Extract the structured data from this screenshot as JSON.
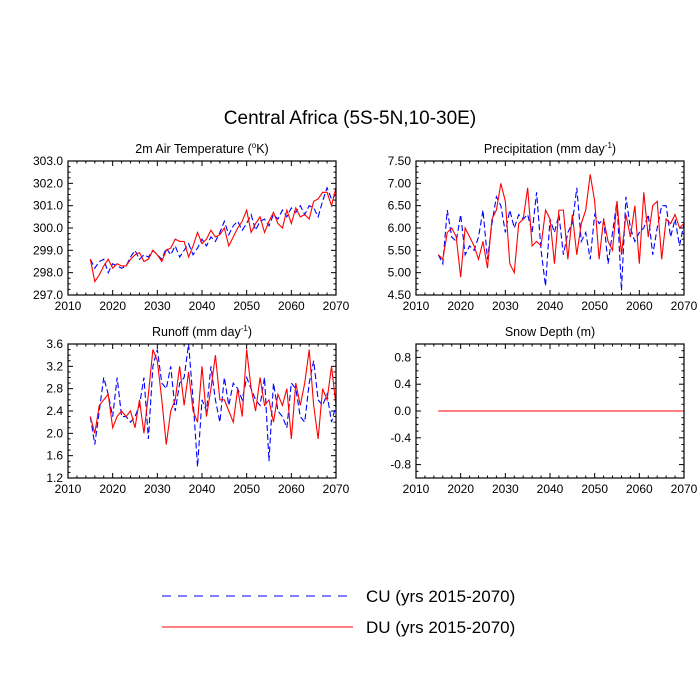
{
  "figure": {
    "title": "Central Africa (5S-5N,10-30E)",
    "x_ticks": [
      "2010",
      "2020",
      "2030",
      "2040",
      "2050",
      "2060",
      "2070"
    ]
  },
  "legend": {
    "entries": [
      {
        "label": "CU (yrs 2015-2070)",
        "color": "#0000ff",
        "style": "dashed"
      },
      {
        "label": "DU (yrs 2015-2070)",
        "color": "#ff0000",
        "style": "solid"
      }
    ]
  },
  "chart_data": [
    {
      "type": "line",
      "title": "2m Air Temperature (°K)",
      "title_parts": [
        "2m Air Temperature (",
        "o",
        "K)"
      ],
      "xlim": [
        2010,
        2070
      ],
      "ylim": [
        297.0,
        303.0
      ],
      "y_ticks": [
        "297.0",
        "298.0",
        "299.0",
        "300.0",
        "301.0",
        "302.0",
        "303.0"
      ],
      "series": [
        {
          "name": "CU (yrs 2015-2070)",
          "color": "#0000ff",
          "style": "dashed",
          "x": [
            2015,
            2016,
            2017,
            2018,
            2019,
            2020,
            2021,
            2022,
            2023,
            2024,
            2025,
            2026,
            2027,
            2028,
            2029,
            2030,
            2031,
            2032,
            2033,
            2034,
            2035,
            2036,
            2037,
            2038,
            2039,
            2040,
            2041,
            2042,
            2043,
            2044,
            2045,
            2046,
            2047,
            2048,
            2049,
            2050,
            2051,
            2052,
            2053,
            2054,
            2055,
            2056,
            2057,
            2058,
            2059,
            2060,
            2061,
            2062,
            2063,
            2064,
            2065,
            2066,
            2067,
            2068,
            2069,
            2070
          ],
          "values": [
            298.6,
            298.2,
            298.5,
            298.6,
            298.0,
            298.4,
            298.3,
            298.2,
            298.3,
            298.7,
            299.0,
            298.6,
            298.8,
            298.7,
            299.0,
            298.8,
            298.6,
            299.1,
            298.8,
            299.2,
            298.7,
            299.0,
            299.3,
            298.8,
            299.1,
            299.5,
            299.2,
            299.6,
            299.4,
            299.8,
            300.3,
            299.7,
            300.1,
            300.3,
            299.9,
            300.2,
            300.6,
            299.9,
            300.3,
            300.4,
            300.1,
            300.6,
            300.4,
            300.8,
            300.5,
            300.9,
            300.7,
            301.0,
            300.6,
            301.0,
            300.9,
            300.5,
            301.2,
            301.8,
            301.3,
            301.5
          ]
        },
        {
          "name": "DU (yrs 2015-2070)",
          "color": "#ff0000",
          "style": "solid",
          "x": [
            2015,
            2016,
            2017,
            2018,
            2019,
            2020,
            2021,
            2022,
            2023,
            2024,
            2025,
            2026,
            2027,
            2028,
            2029,
            2030,
            2031,
            2032,
            2033,
            2034,
            2035,
            2036,
            2037,
            2038,
            2039,
            2040,
            2041,
            2042,
            2043,
            2044,
            2045,
            2046,
            2047,
            2048,
            2049,
            2050,
            2051,
            2052,
            2053,
            2054,
            2055,
            2056,
            2057,
            2058,
            2059,
            2060,
            2061,
            2062,
            2063,
            2064,
            2065,
            2066,
            2067,
            2068,
            2069,
            2070
          ],
          "values": [
            298.6,
            297.6,
            297.9,
            298.3,
            298.6,
            298.2,
            298.4,
            298.3,
            298.3,
            298.6,
            298.8,
            298.9,
            298.5,
            298.6,
            299.0,
            298.8,
            298.5,
            299.0,
            299.1,
            299.5,
            299.4,
            299.4,
            298.7,
            299.2,
            299.8,
            299.3,
            299.5,
            299.9,
            299.6,
            299.7,
            300.0,
            299.2,
            299.6,
            300.0,
            300.3,
            300.8,
            299.8,
            300.2,
            300.5,
            299.8,
            300.3,
            300.7,
            300.2,
            300.0,
            300.8,
            300.2,
            300.9,
            300.5,
            300.6,
            300.4,
            301.2,
            301.3,
            301.6,
            301.6,
            301.0,
            301.8
          ]
        }
      ]
    },
    {
      "type": "line",
      "title": "Precipitation (mm day⁻¹)",
      "title_parts": [
        "Precipitation (mm day",
        "-1",
        ")"
      ],
      "xlim": [
        2010,
        2070
      ],
      "ylim": [
        4.5,
        7.5
      ],
      "y_ticks": [
        "4.50",
        "5.00",
        "5.50",
        "6.00",
        "6.50",
        "7.00",
        "7.50"
      ],
      "series": [
        {
          "name": "CU (yrs 2015-2070)",
          "color": "#0000ff",
          "style": "dashed",
          "x": [
            2015,
            2016,
            2017,
            2018,
            2019,
            2020,
            2021,
            2022,
            2023,
            2024,
            2025,
            2026,
            2027,
            2028,
            2029,
            2030,
            2031,
            2032,
            2033,
            2034,
            2035,
            2036,
            2037,
            2038,
            2039,
            2040,
            2041,
            2042,
            2043,
            2044,
            2045,
            2046,
            2047,
            2048,
            2049,
            2050,
            2051,
            2052,
            2053,
            2054,
            2055,
            2056,
            2057,
            2058,
            2059,
            2060,
            2061,
            2062,
            2063,
            2064,
            2065,
            2066,
            2067,
            2068,
            2069,
            2070
          ],
          "values": [
            5.4,
            5.2,
            6.4,
            5.8,
            5.7,
            6.3,
            5.4,
            5.6,
            5.5,
            5.8,
            6.4,
            5.3,
            6.1,
            6.7,
            6.5,
            5.9,
            6.4,
            6.0,
            6.3,
            6.2,
            6.3,
            5.9,
            6.8,
            5.5,
            4.7,
            6.2,
            5.9,
            6.3,
            5.4,
            5.9,
            6.1,
            6.9,
            5.7,
            5.9,
            5.3,
            6.3,
            6.1,
            6.2,
            5.2,
            5.9,
            6.6,
            4.6,
            6.7,
            6.0,
            5.7,
            5.9,
            6.0,
            6.3,
            5.4,
            6.0,
            6.5,
            6.5,
            5.8,
            6.2,
            5.6,
            6.1
          ]
        },
        {
          "name": "DU (yrs 2015-2070)",
          "color": "#ff0000",
          "style": "solid",
          "x": [
            2015,
            2016,
            2017,
            2018,
            2019,
            2020,
            2021,
            2022,
            2023,
            2024,
            2025,
            2026,
            2027,
            2028,
            2029,
            2030,
            2031,
            2032,
            2033,
            2034,
            2035,
            2036,
            2037,
            2038,
            2039,
            2040,
            2041,
            2042,
            2043,
            2044,
            2045,
            2046,
            2047,
            2048,
            2049,
            2050,
            2051,
            2052,
            2053,
            2054,
            2055,
            2056,
            2057,
            2058,
            2059,
            2060,
            2061,
            2062,
            2063,
            2064,
            2065,
            2066,
            2067,
            2068,
            2069,
            2070
          ],
          "values": [
            5.4,
            5.3,
            5.9,
            6.0,
            5.8,
            4.9,
            6.0,
            5.8,
            5.6,
            5.3,
            5.7,
            5.1,
            6.2,
            6.4,
            7.0,
            6.6,
            5.2,
            5.0,
            6.1,
            6.2,
            6.9,
            5.6,
            5.7,
            5.6,
            6.4,
            6.2,
            5.2,
            6.4,
            6.4,
            5.3,
            6.3,
            5.4,
            6.1,
            6.4,
            7.2,
            6.6,
            5.3,
            6.2,
            5.7,
            5.5,
            6.6,
            5.4,
            6.3,
            5.8,
            6.5,
            5.2,
            6.8,
            5.8,
            6.5,
            6.6,
            5.3,
            6.2,
            6.1,
            6.3,
            6.0,
            6.1
          ]
        }
      ]
    },
    {
      "type": "line",
      "title": "Runoff (mm day⁻¹)",
      "title_parts": [
        "Runoff (mm day",
        "-1",
        ")"
      ],
      "xlim": [
        2010,
        2070
      ],
      "ylim": [
        1.2,
        3.6
      ],
      "y_ticks": [
        "1.2",
        "1.6",
        "2.0",
        "2.4",
        "2.8",
        "3.2",
        "3.6"
      ],
      "series": [
        {
          "name": "CU (yrs 2015-2070)",
          "color": "#0000ff",
          "style": "dashed",
          "x": [
            2015,
            2016,
            2017,
            2018,
            2019,
            2020,
            2021,
            2022,
            2023,
            2024,
            2025,
            2026,
            2027,
            2028,
            2029,
            2030,
            2031,
            2032,
            2033,
            2034,
            2035,
            2036,
            2037,
            2038,
            2039,
            2040,
            2041,
            2042,
            2043,
            2044,
            2045,
            2046,
            2047,
            2048,
            2049,
            2050,
            2051,
            2052,
            2053,
            2054,
            2055,
            2056,
            2057,
            2058,
            2059,
            2060,
            2061,
            2062,
            2063,
            2064,
            2065,
            2066,
            2067,
            2068,
            2069,
            2070
          ],
          "values": [
            2.3,
            1.8,
            2.4,
            3.0,
            2.7,
            2.3,
            3.0,
            2.3,
            2.3,
            2.2,
            2.3,
            2.5,
            3.0,
            1.9,
            3.2,
            3.5,
            2.9,
            2.8,
            3.2,
            2.4,
            2.9,
            3.0,
            3.6,
            2.6,
            1.4,
            2.6,
            2.4,
            3.2,
            2.6,
            2.2,
            3.0,
            2.5,
            2.9,
            2.8,
            2.6,
            3.0,
            2.8,
            2.6,
            2.5,
            3.0,
            1.5,
            2.9,
            2.4,
            2.3,
            2.1,
            2.9,
            2.8,
            2.3,
            2.2,
            2.9,
            3.3,
            2.6,
            2.5,
            2.7,
            2.2,
            2.5
          ]
        },
        {
          "name": "DU (yrs 2015-2070)",
          "color": "#ff0000",
          "style": "solid",
          "x": [
            2015,
            2016,
            2017,
            2018,
            2019,
            2020,
            2021,
            2022,
            2023,
            2024,
            2025,
            2026,
            2027,
            2028,
            2029,
            2030,
            2031,
            2032,
            2033,
            2034,
            2035,
            2036,
            2037,
            2038,
            2039,
            2040,
            2041,
            2042,
            2043,
            2044,
            2045,
            2046,
            2047,
            2048,
            2049,
            2050,
            2051,
            2052,
            2053,
            2054,
            2055,
            2056,
            2057,
            2058,
            2059,
            2060,
            2061,
            2062,
            2063,
            2064,
            2065,
            2066,
            2067,
            2068,
            2069,
            2070
          ],
          "values": [
            2.3,
            2.0,
            2.5,
            2.6,
            2.7,
            2.1,
            2.3,
            2.4,
            2.3,
            2.4,
            2.1,
            2.6,
            2.0,
            2.7,
            3.5,
            3.3,
            2.6,
            1.8,
            2.4,
            2.6,
            3.2,
            2.5,
            3.1,
            2.4,
            2.2,
            3.2,
            2.3,
            2.8,
            3.4,
            2.6,
            2.6,
            2.4,
            2.2,
            2.8,
            2.3,
            3.5,
            2.8,
            2.4,
            3.0,
            2.5,
            2.6,
            2.2,
            2.7,
            2.5,
            2.8,
            1.9,
            2.9,
            2.5,
            2.9,
            3.5,
            2.5,
            1.9,
            2.8,
            2.6,
            3.2,
            2.5
          ]
        }
      ]
    },
    {
      "type": "line",
      "title": "Snow Depth (m)",
      "title_parts": [
        "Snow Depth (m)",
        "",
        ""
      ],
      "xlim": [
        2010,
        2070
      ],
      "ylim": [
        -1.0,
        1.0
      ],
      "y_ticks": [
        "-0.8",
        "-0.4",
        "0.0",
        "0.4",
        "0.8"
      ],
      "series": [
        {
          "name": "CU (yrs 2015-2070)",
          "color": "#0000ff",
          "style": "dashed",
          "x": [
            2015,
            2070
          ],
          "values": [
            0.0,
            0.0
          ]
        },
        {
          "name": "DU (yrs 2015-2070)",
          "color": "#ff0000",
          "style": "solid",
          "x": [
            2015,
            2070
          ],
          "values": [
            0.0,
            0.0
          ]
        }
      ]
    }
  ]
}
